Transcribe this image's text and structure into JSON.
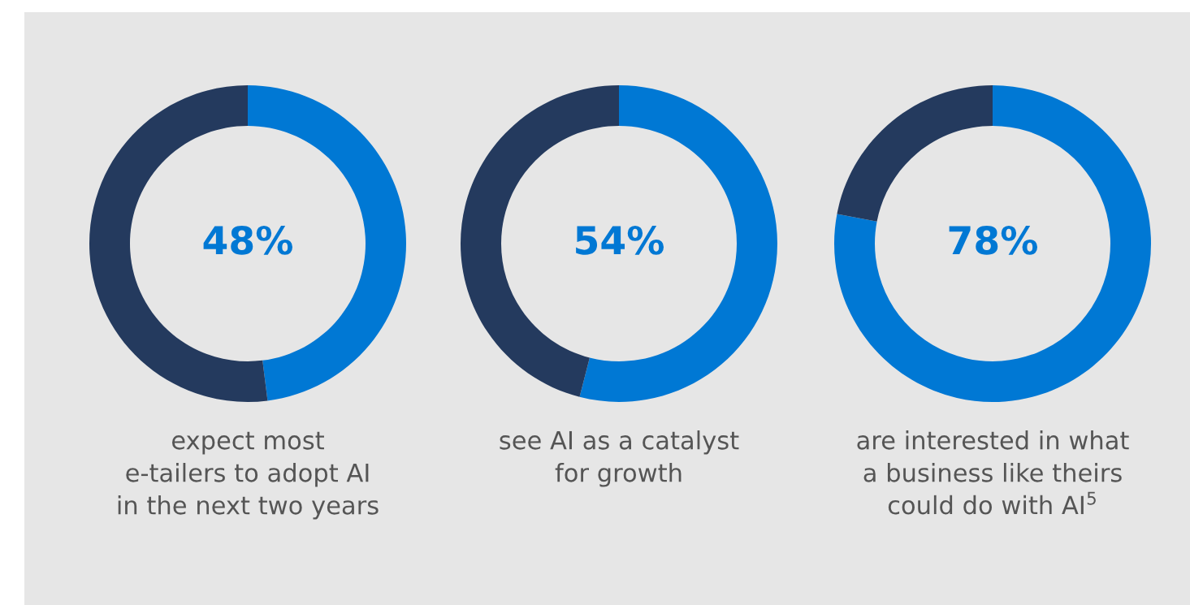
{
  "chart_data": [
    {
      "type": "donut",
      "categories": [
        null,
        null
      ],
      "values": [
        48,
        52
      ],
      "colors": [
        "#0078d4",
        "#243a5e"
      ],
      "value_labels": [
        "48%",
        null
      ],
      "annotations": [
        "expect most\ne-tailers to adopt AI\nin the next two years"
      ]
    },
    {
      "type": "donut",
      "categories": [
        null,
        null
      ],
      "values": [
        54,
        46
      ],
      "colors": [
        "#0078d4",
        "#243a5e"
      ],
      "value_labels": [
        "54%",
        null
      ],
      "annotations": [
        "see AI as a catalyst\nfor growth"
      ]
    },
    {
      "type": "donut",
      "categories": [
        null,
        null
      ],
      "values": [
        78,
        22
      ],
      "colors": [
        "#0078d4",
        "#243a5e"
      ],
      "value_labels": [
        "78%",
        null
      ],
      "annotations": [
        "are interested in what\na business like theirs\ncould do with AI$^{5}$"
      ]
    }
  ]
}
